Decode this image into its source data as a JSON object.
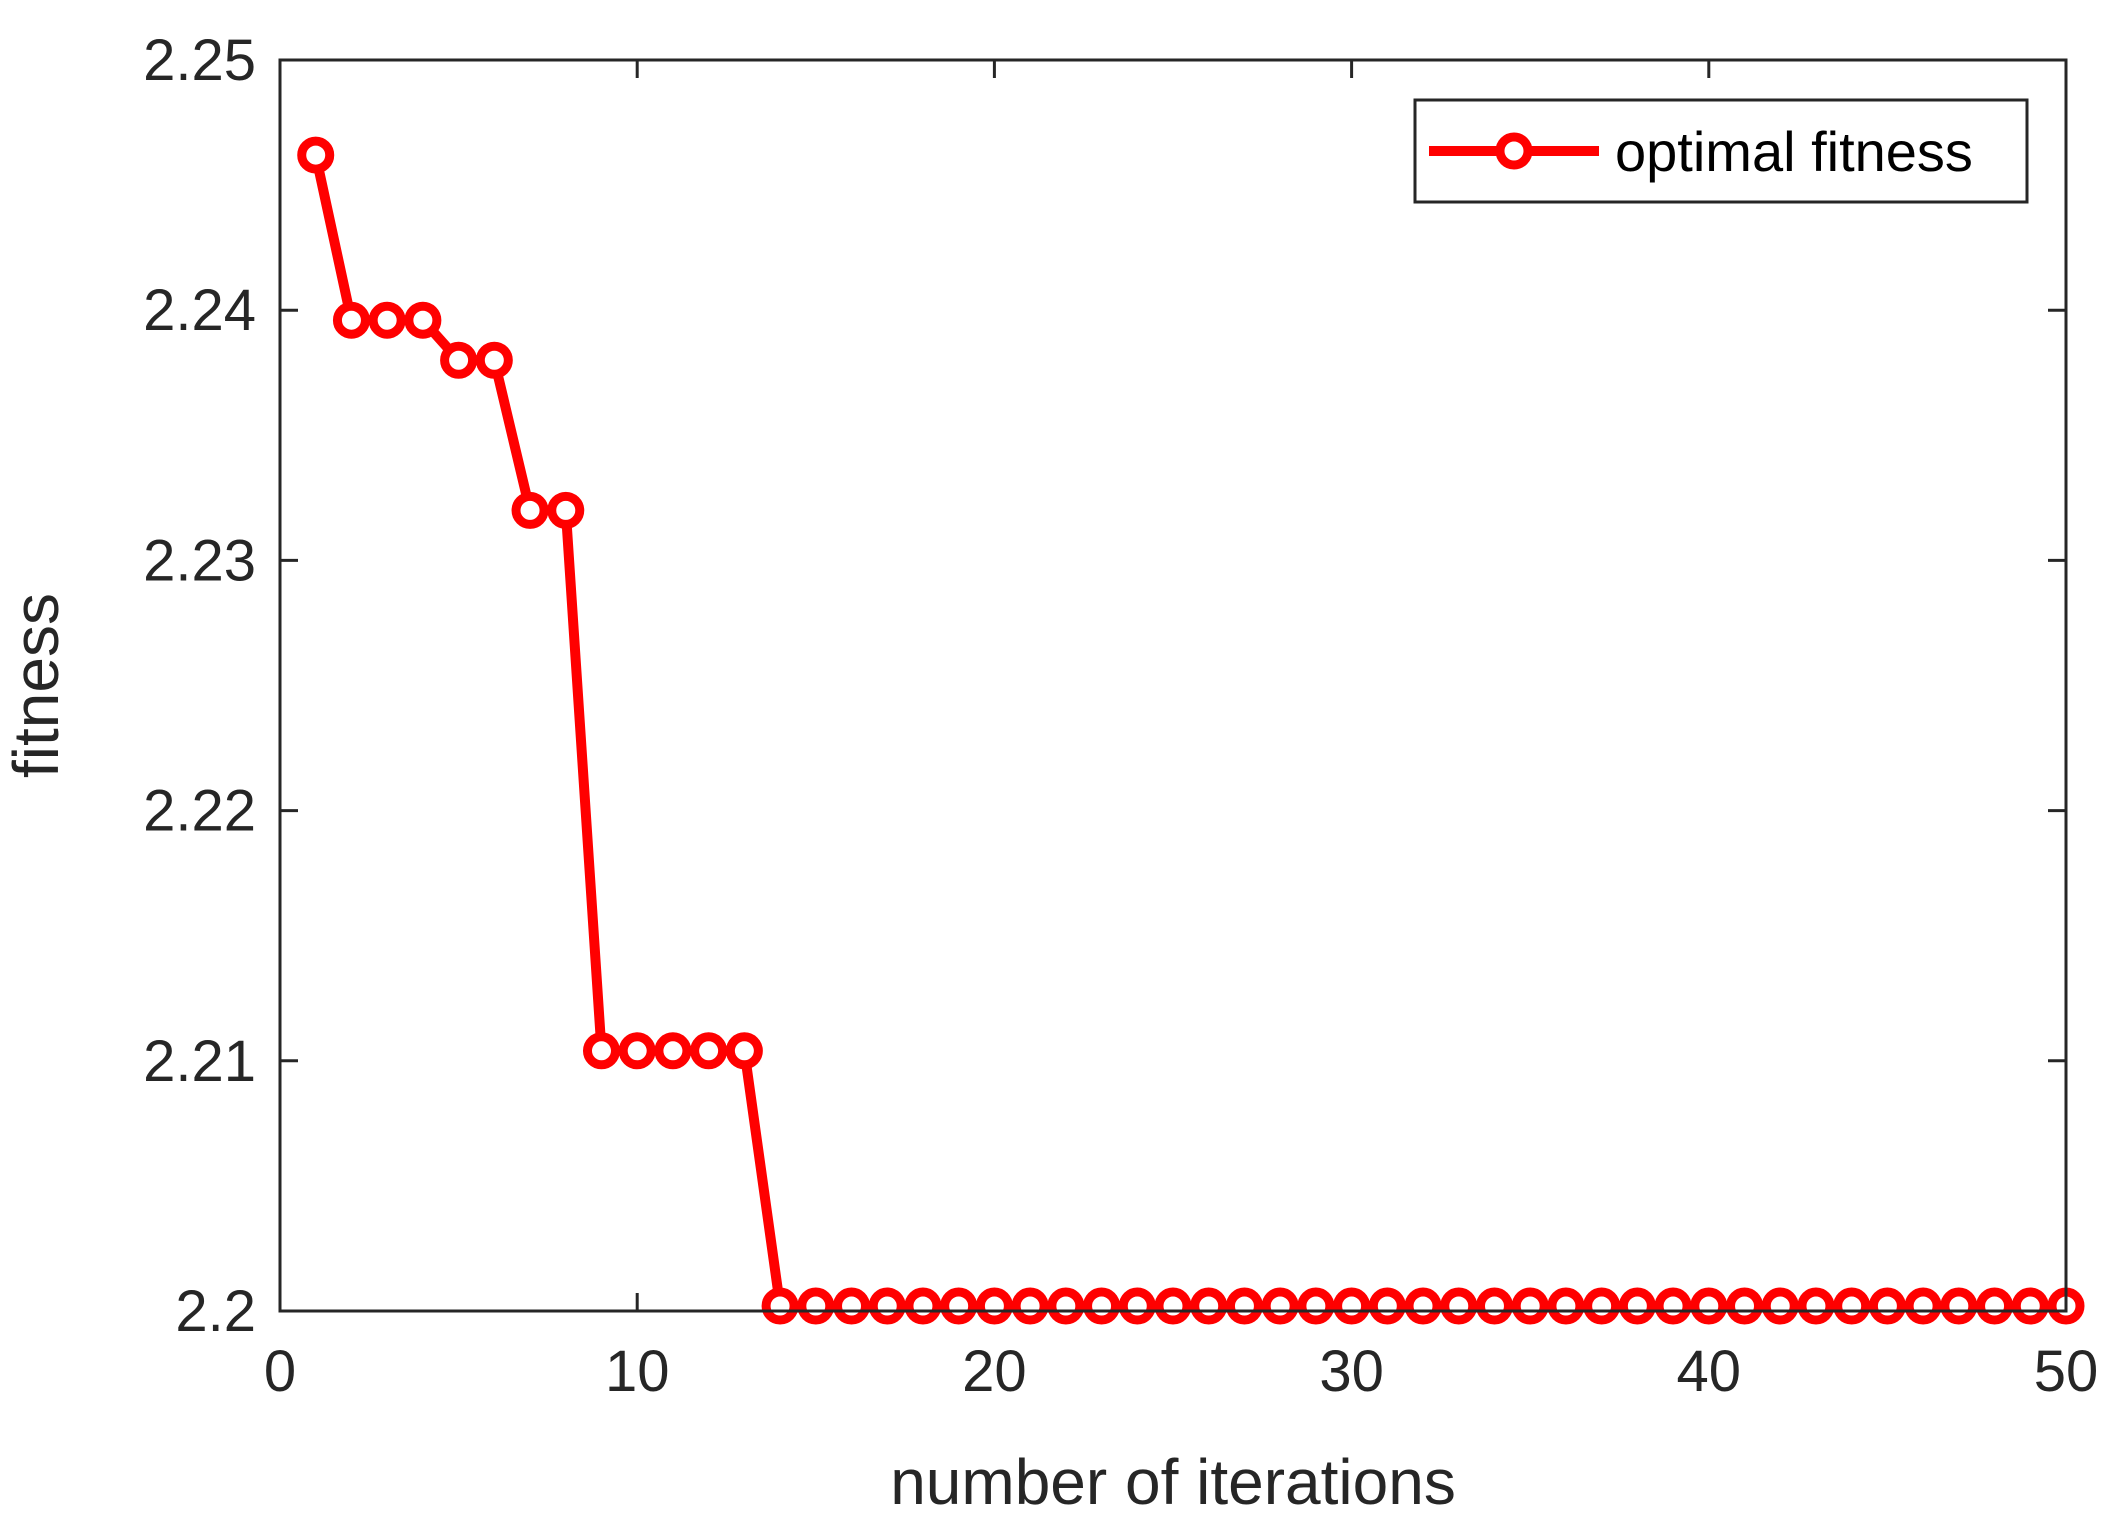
{
  "chart_data": {
    "type": "line",
    "title": "",
    "xlabel": "number of iterations",
    "ylabel": "fitness",
    "xlim": [
      0,
      50
    ],
    "ylim": [
      2.2,
      2.25
    ],
    "x_ticks": [
      0,
      10,
      20,
      30,
      40,
      50
    ],
    "y_ticks": [
      2.2,
      2.21,
      2.22,
      2.23,
      2.24,
      2.25
    ],
    "x_tick_labels": [
      "0",
      "10",
      "20",
      "30",
      "40",
      "50"
    ],
    "y_tick_labels": [
      "2.2",
      "2.21",
      "2.22",
      "2.23",
      "2.24",
      "2.25"
    ],
    "grid": false,
    "legend_position": "top-right",
    "colors": {
      "series": "#ff0000",
      "axis": "#262626"
    },
    "series": [
      {
        "name": "optimal fitness",
        "marker": "circle",
        "x": [
          1,
          2,
          3,
          4,
          5,
          6,
          7,
          8,
          9,
          10,
          11,
          12,
          13,
          14,
          15,
          16,
          17,
          18,
          19,
          20,
          21,
          22,
          23,
          24,
          25,
          26,
          27,
          28,
          29,
          30,
          31,
          32,
          33,
          34,
          35,
          36,
          37,
          38,
          39,
          40,
          41,
          42,
          43,
          44,
          45,
          46,
          47,
          48,
          49,
          50
        ],
        "values": [
          2.2462,
          2.2396,
          2.2396,
          2.2396,
          2.238,
          2.238,
          2.232,
          2.232,
          2.2104,
          2.2104,
          2.2104,
          2.2104,
          2.2104,
          2.2002,
          2.2002,
          2.2002,
          2.2002,
          2.2002,
          2.2002,
          2.2002,
          2.2002,
          2.2002,
          2.2002,
          2.2002,
          2.2002,
          2.2002,
          2.2002,
          2.2002,
          2.2002,
          2.2002,
          2.2002,
          2.2002,
          2.2002,
          2.2002,
          2.2002,
          2.2002,
          2.2002,
          2.2002,
          2.2002,
          2.2002,
          2.2002,
          2.2002,
          2.2002,
          2.2002,
          2.2002,
          2.2002,
          2.2002,
          2.2002,
          2.2002,
          2.2002
        ]
      }
    ]
  }
}
